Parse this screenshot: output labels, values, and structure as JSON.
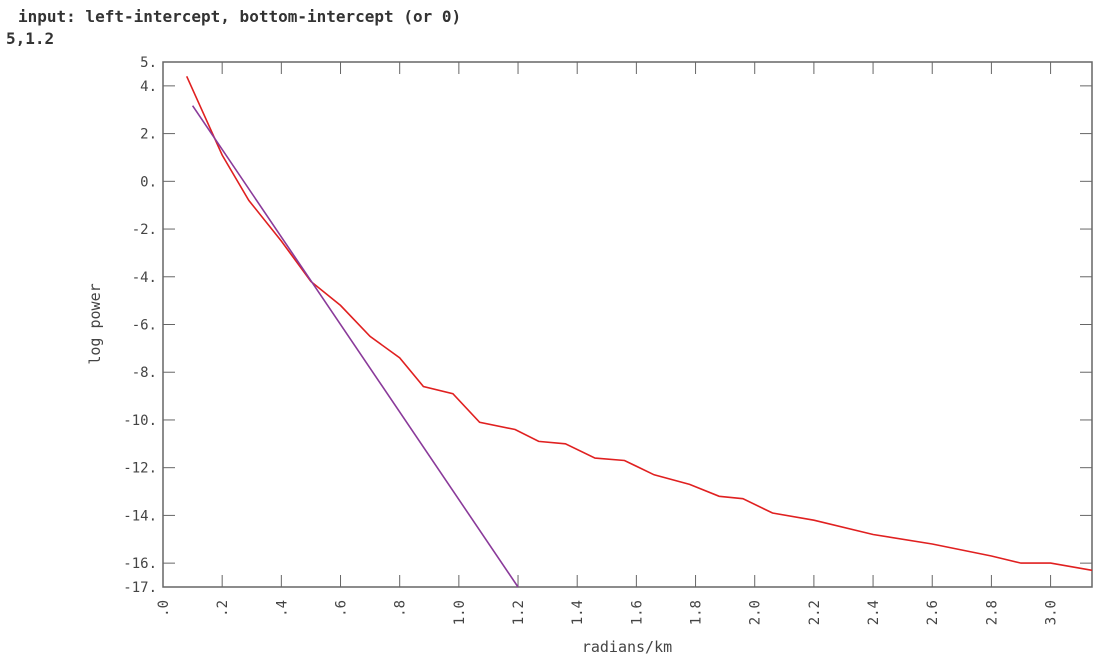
{
  "prompt": "input: left-intercept, bottom-intercept (or 0)",
  "input": "5,1.2",
  "chart_data": {
    "type": "line",
    "xlabel": "radians/km",
    "ylabel": "log power",
    "xlim": [
      0,
      3.14
    ],
    "ylim": [
      -17,
      5
    ],
    "xticks": [
      {
        "value": 0,
        "label": ".0"
      },
      {
        "value": 0.2,
        "label": ".2"
      },
      {
        "value": 0.4,
        "label": ".4"
      },
      {
        "value": 0.6,
        "label": ".6"
      },
      {
        "value": 0.8,
        "label": ".8"
      },
      {
        "value": 1.0,
        "label": "1.0"
      },
      {
        "value": 1.2,
        "label": "1.2"
      },
      {
        "value": 1.4,
        "label": "1.4"
      },
      {
        "value": 1.6,
        "label": "1.6"
      },
      {
        "value": 1.8,
        "label": "1.8"
      },
      {
        "value": 2.0,
        "label": "2.0"
      },
      {
        "value": 2.2,
        "label": "2.2"
      },
      {
        "value": 2.4,
        "label": "2.4"
      },
      {
        "value": 2.6,
        "label": "2.6"
      },
      {
        "value": 2.8,
        "label": "2.8"
      },
      {
        "value": 3.0,
        "label": "3.0"
      }
    ],
    "yticks": [
      {
        "value": 5,
        "label": "5."
      },
      {
        "value": 4,
        "label": "4."
      },
      {
        "value": 2,
        "label": "2."
      },
      {
        "value": 0,
        "label": "0."
      },
      {
        "value": -2,
        "label": "-2."
      },
      {
        "value": -4,
        "label": "-4."
      },
      {
        "value": -6,
        "label": "-6."
      },
      {
        "value": -8,
        "label": "-8."
      },
      {
        "value": -10,
        "label": "-10."
      },
      {
        "value": -12,
        "label": "-12."
      },
      {
        "value": -14,
        "label": "-14."
      },
      {
        "value": -16,
        "label": "-16."
      },
      {
        "value": -17,
        "label": "-17."
      }
    ],
    "series": [
      {
        "color": "#e02020",
        "x": [
          0.08,
          0.2,
          0.29,
          0.4,
          0.5,
          0.6,
          0.7,
          0.8,
          0.88,
          0.98,
          1.07,
          1.19,
          1.27,
          1.36,
          1.46,
          1.56,
          1.66,
          1.78,
          1.88,
          1.96,
          2.06,
          2.2,
          2.4,
          2.6,
          2.8,
          2.9,
          3.0,
          3.14
        ],
        "values": [
          4.4,
          1.1,
          -0.8,
          -2.5,
          -4.2,
          -5.2,
          -6.5,
          -7.4,
          -8.6,
          -8.9,
          -10.1,
          -10.4,
          -10.9,
          -11.0,
          -11.6,
          -11.7,
          -12.3,
          -12.7,
          -13.2,
          -13.3,
          -13.9,
          -14.2,
          -14.8,
          -15.2,
          -15.7,
          -16.0,
          -16.0,
          -16.3
        ]
      },
      {
        "color": "#8a3a9a",
        "x": [
          0.1,
          1.2
        ],
        "values": [
          3.17,
          -17
        ]
      }
    ]
  }
}
